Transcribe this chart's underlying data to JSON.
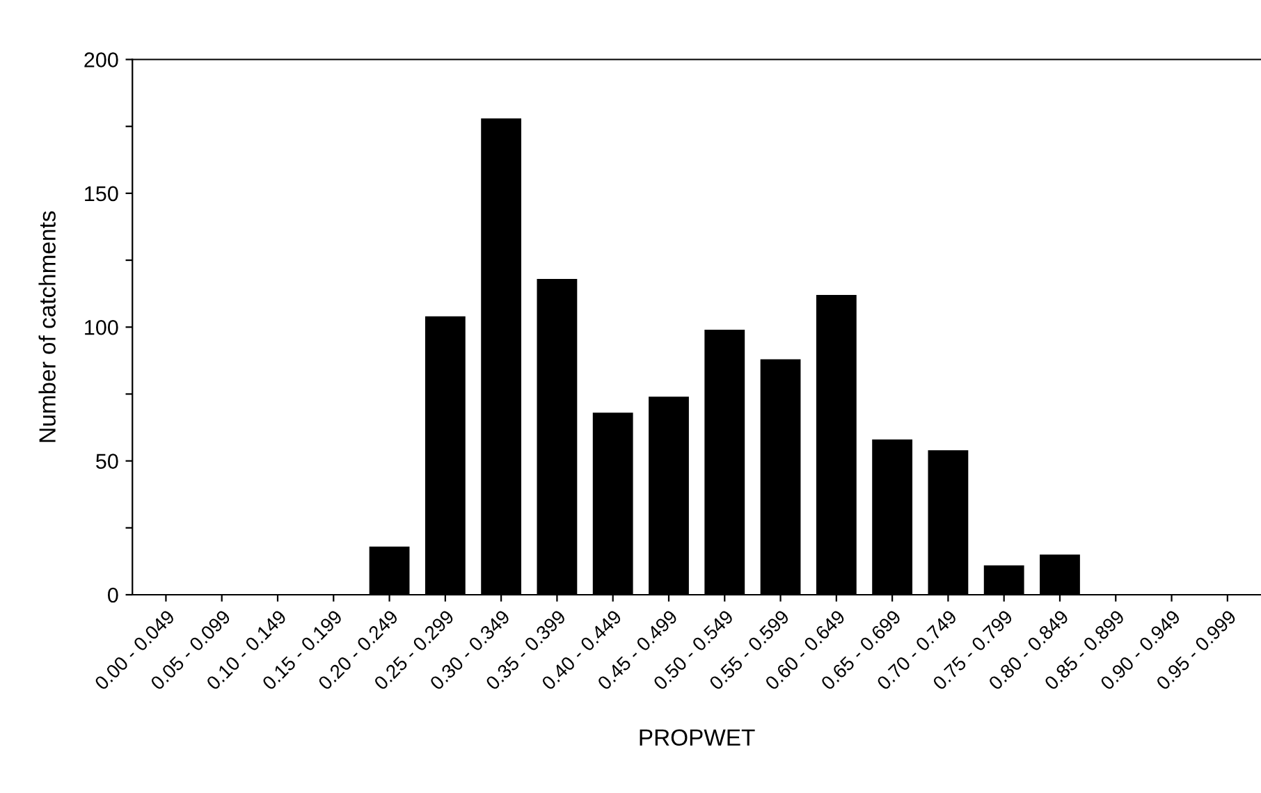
{
  "chart_data": {
    "type": "bar",
    "xlabel": "PROPWET",
    "ylabel": "Number of catchments",
    "categories": [
      "0.00 - 0.049",
      "0.05 - 0.099",
      "0.10 - 0.149",
      "0.15 - 0.199",
      "0.20 - 0.249",
      "0.25 - 0.299",
      "0.30 - 0.349",
      "0.35 - 0.399",
      "0.40 - 0.449",
      "0.45 - 0.499",
      "0.50 - 0.549",
      "0.55 - 0.599",
      "0.60 - 0.649",
      "0.65 - 0.699",
      "0.70 - 0.749",
      "0.75 - 0.799",
      "0.80 - 0.849",
      "0.85 - 0.899",
      "0.90 - 0.949",
      "0.95 - 0.999"
    ],
    "values": [
      0,
      0,
      0,
      0,
      18,
      104,
      178,
      118,
      68,
      74,
      99,
      88,
      112,
      58,
      54,
      11,
      15,
      0,
      0,
      0
    ],
    "color": "#000000",
    "ylim": [
      0,
      200
    ],
    "yticks": [
      0,
      {
        "value": 25,
        "label": null
      },
      50,
      {
        "value": 75,
        "label": null
      },
      100,
      {
        "value": 125,
        "label": null
      },
      150,
      {
        "value": 175,
        "label": null
      },
      200
    ],
    "grid": false
  }
}
